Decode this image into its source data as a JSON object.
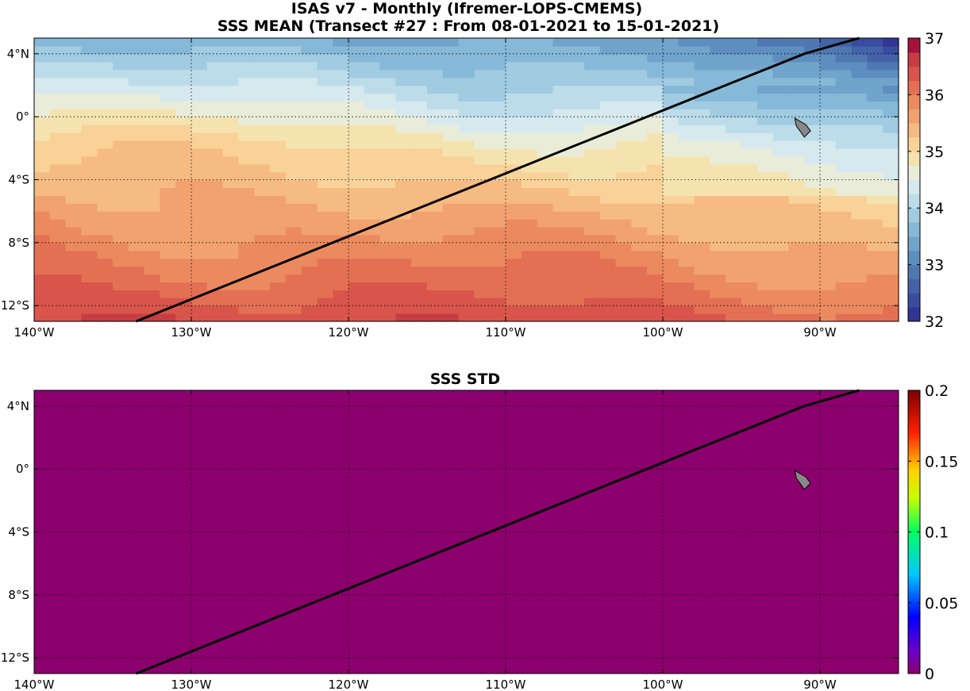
{
  "figure": {
    "title_line1": "ISAS v7 - Monthly (Ifremer-LOPS-CMEMS)",
    "title_line2": "SSS MEAN (Transect #27 : From 08-01-2021 to 15-01-2021)"
  },
  "panels": [
    {
      "id": "mean",
      "title": "",
      "colorbar": {
        "min": 32,
        "max": 37,
        "ticks": [
          32,
          33,
          34,
          35,
          36,
          37
        ],
        "tick_labels": [
          "32",
          "33",
          "34",
          "35",
          "36",
          "37"
        ],
        "colormap": "RdYlBu reversed, 20 discrete levels",
        "levels": [
          "#313695",
          "#3a4c9e",
          "#4462a8",
          "#4f78b3",
          "#5d8ebf",
          "#70a4cb",
          "#86b8d7",
          "#a0cbe1",
          "#bcdcea",
          "#d6e9ef",
          "#e9ecd8",
          "#f5e3af",
          "#f8d298",
          "#f6bb82",
          "#f1a26f",
          "#ec8a5f",
          "#e47054",
          "#d9554b",
          "#c63c42",
          "#a5123b"
        ]
      }
    },
    {
      "id": "std",
      "title": "SSS STD",
      "colorbar": {
        "min": 0,
        "max": 0.2,
        "ticks": [
          0,
          0.05,
          0.1,
          0.15,
          0.2
        ],
        "tick_labels": [
          "0",
          "0.05",
          "0.1",
          "0.15",
          "0.2"
        ],
        "colormap": "jet-like (purple-blue-cyan-green-yellow-red-dark red)"
      }
    }
  ],
  "map": {
    "lon_range": [
      -140,
      -85
    ],
    "lat_range": [
      -13,
      5
    ],
    "lon_ticks": [
      -140,
      -130,
      -120,
      -110,
      -100,
      -90
    ],
    "lon_tick_labels": [
      "140°W",
      "130°W",
      "120°W",
      "110°W",
      "100°W",
      "90°W"
    ],
    "lat_ticks": [
      4,
      0,
      -4,
      -8,
      -12
    ],
    "lat_tick_labels": [
      "4°N",
      "0°",
      "4°S",
      "8°S",
      "12°S"
    ],
    "grid": "dotted",
    "land_color": "#888888",
    "island": "Galapagos"
  },
  "transect": {
    "name": "Transect #27",
    "points": [
      [
        -133.5,
        -13
      ],
      [
        -91,
        4
      ],
      [
        -87.5,
        5
      ]
    ],
    "color": "#000000"
  },
  "mean_field": {
    "description_zones": "salinity bands from high (south) to low (north-east)",
    "std_value": 0,
    "std_color": "#8c006e"
  }
}
